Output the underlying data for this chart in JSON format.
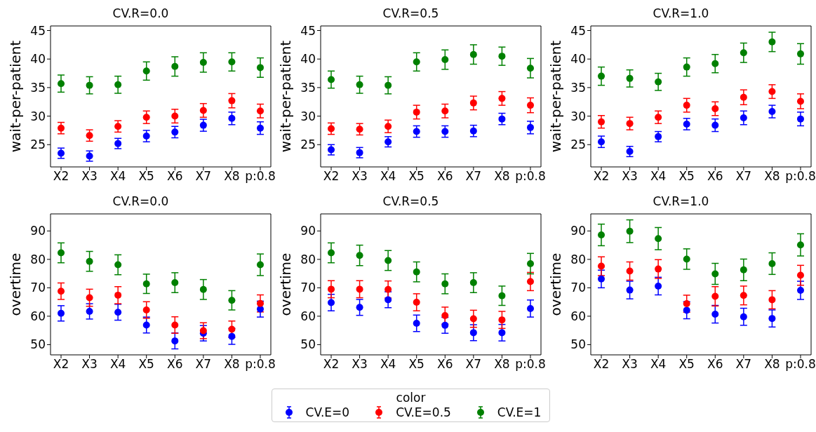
{
  "chart_data": [
    {
      "type": "scatter",
      "title": "CV.R=0.0",
      "ylabel": "wait-per-patient",
      "categories": [
        "X2",
        "X3",
        "X4",
        "X5",
        "X6",
        "X7",
        "X8",
        "p:0.8"
      ],
      "ylim": [
        21.1,
        45.8
      ],
      "yticks": [
        25,
        30,
        35,
        40,
        45
      ],
      "grid": false,
      "marker": "circle",
      "legend": "bottom",
      "legend_title": "color",
      "series": [
        {
          "name": "CV.E=0",
          "color": "#0000ff",
          "values": [
            23.5,
            23.0,
            25.2,
            26.5,
            27.2,
            28.4,
            29.6,
            27.9
          ],
          "errors": [
            0.9,
            0.9,
            0.9,
            1.0,
            1.0,
            1.05,
            1.1,
            1.1
          ]
        },
        {
          "name": "CV.E=0.5",
          "color": "#ff0000",
          "values": [
            27.9,
            26.6,
            28.2,
            29.8,
            30.0,
            31.0,
            32.7,
            30.9
          ],
          "errors": [
            1.0,
            1.0,
            1.0,
            1.1,
            1.2,
            1.2,
            1.25,
            1.2
          ]
        },
        {
          "name": "CV.E=1",
          "color": "#008000",
          "values": [
            35.7,
            35.4,
            35.5,
            37.9,
            38.7,
            39.4,
            39.5,
            38.5
          ],
          "errors": [
            1.5,
            1.5,
            1.5,
            1.6,
            1.7,
            1.7,
            1.6,
            1.7
          ]
        }
      ]
    },
    {
      "type": "scatter",
      "title": "CV.R=0.5",
      "ylabel": "wait-per-patient",
      "categories": [
        "X2",
        "X3",
        "X4",
        "X5",
        "X6",
        "X7",
        "X8",
        "p:0.8"
      ],
      "ylim": [
        21.1,
        45.8
      ],
      "yticks": [
        25,
        30,
        35,
        40,
        45
      ],
      "grid": false,
      "marker": "circle",
      "series": [
        {
          "color": "#0000ff",
          "values": [
            24.1,
            23.6,
            25.5,
            27.3,
            27.3,
            27.4,
            29.5,
            28.0
          ],
          "errors": [
            0.9,
            0.9,
            0.9,
            1.0,
            1.0,
            1.0,
            1.0,
            1.1
          ]
        },
        {
          "color": "#ff0000",
          "values": [
            27.8,
            27.7,
            28.2,
            30.7,
            30.9,
            32.3,
            33.1,
            31.9
          ],
          "errors": [
            1.0,
            1.0,
            1.1,
            1.2,
            1.2,
            1.2,
            1.2,
            1.3
          ]
        },
        {
          "color": "#008000",
          "values": [
            36.4,
            35.5,
            35.4,
            39.5,
            39.9,
            40.8,
            40.5,
            38.4
          ],
          "errors": [
            1.5,
            1.5,
            1.5,
            1.6,
            1.7,
            1.7,
            1.6,
            1.7
          ]
        }
      ]
    },
    {
      "type": "scatter",
      "title": "CV.R=1.0",
      "ylabel": "wait-per-patient",
      "categories": [
        "X2",
        "X3",
        "X4",
        "X5",
        "X6",
        "X7",
        "X8",
        "p:0.8"
      ],
      "ylim": [
        21.1,
        45.8
      ],
      "yticks": [
        25,
        30,
        35,
        40,
        45
      ],
      "grid": false,
      "marker": "circle",
      "series": [
        {
          "color": "#0000ff",
          "values": [
            25.5,
            23.8,
            26.4,
            28.6,
            28.4,
            29.7,
            30.8,
            29.5
          ],
          "errors": [
            1.0,
            0.9,
            0.9,
            1.0,
            1.1,
            1.2,
            1.1,
            1.2
          ]
        },
        {
          "color": "#ff0000",
          "values": [
            29.0,
            28.7,
            29.8,
            31.9,
            31.3,
            33.3,
            34.3,
            32.6
          ],
          "errors": [
            1.1,
            1.1,
            1.1,
            1.2,
            1.2,
            1.3,
            1.2,
            1.3
          ]
        },
        {
          "color": "#008000",
          "values": [
            37.0,
            36.6,
            36.0,
            38.6,
            39.2,
            41.1,
            43.0,
            40.9
          ],
          "errors": [
            1.6,
            1.5,
            1.5,
            1.6,
            1.6,
            1.7,
            1.7,
            1.8
          ]
        }
      ]
    },
    {
      "type": "scatter",
      "title": "CV.R=0.0",
      "ylabel": "overtime",
      "categories": [
        "X2",
        "X3",
        "X4",
        "X5",
        "X6",
        "X7",
        "X8",
        "p:0.8"
      ],
      "ylim": [
        46.4,
        96
      ],
      "yticks": [
        50,
        60,
        70,
        80,
        90
      ],
      "grid": false,
      "marker": "circle",
      "series": [
        {
          "color": "#0000ff",
          "values": [
            61.0,
            61.7,
            61.4,
            56.9,
            51.3,
            54.0,
            52.9,
            62.5
          ],
          "errors": [
            2.7,
            2.7,
            2.8,
            2.8,
            2.8,
            2.7,
            2.8,
            2.8
          ]
        },
        {
          "color": "#ff0000",
          "values": [
            68.8,
            66.5,
            67.4,
            62.2,
            56.9,
            54.9,
            55.4,
            64.5
          ],
          "errors": [
            2.9,
            3.0,
            3.0,
            2.9,
            2.9,
            2.8,
            2.9,
            3.0
          ]
        },
        {
          "color": "#008000",
          "values": [
            82.3,
            79.3,
            78.1,
            71.4,
            71.8,
            69.4,
            65.6,
            78.1
          ],
          "errors": [
            3.5,
            3.5,
            3.5,
            3.4,
            3.5,
            3.5,
            3.4,
            3.8
          ]
        }
      ]
    },
    {
      "type": "scatter",
      "title": "CV.R=0.5",
      "ylabel": "overtime",
      "categories": [
        "X2",
        "X3",
        "X4",
        "X5",
        "X6",
        "X7",
        "X8",
        "p:0.8"
      ],
      "ylim": [
        46.4,
        96
      ],
      "yticks": [
        50,
        60,
        70,
        80,
        90
      ],
      "grid": false,
      "marker": "circle",
      "series": [
        {
          "color": "#0000ff",
          "values": [
            64.8,
            63.1,
            65.8,
            57.5,
            56.8,
            54.2,
            54.2,
            62.7
          ],
          "errors": [
            2.9,
            2.8,
            2.8,
            2.9,
            2.8,
            2.8,
            2.9,
            3.0
          ]
        },
        {
          "color": "#ff0000",
          "values": [
            69.5,
            69.5,
            69.4,
            64.9,
            60.2,
            59.1,
            58.7,
            72.2
          ],
          "errors": [
            3.0,
            3.0,
            3.0,
            3.0,
            3.0,
            3.0,
            3.0,
            3.2
          ]
        },
        {
          "color": "#008000",
          "values": [
            82.3,
            81.4,
            79.6,
            75.6,
            71.4,
            71.8,
            67.2,
            78.5
          ],
          "errors": [
            3.5,
            3.6,
            3.5,
            3.5,
            3.5,
            3.5,
            3.4,
            3.6
          ]
        }
      ]
    },
    {
      "type": "scatter",
      "title": "CV.R=1.0",
      "ylabel": "overtime",
      "categories": [
        "X2",
        "X3",
        "X4",
        "X5",
        "X6",
        "X7",
        "X8",
        "p:0.8"
      ],
      "ylim": [
        46.4,
        96
      ],
      "yticks": [
        50,
        60,
        70,
        80,
        90
      ],
      "grid": false,
      "marker": "circle",
      "series": [
        {
          "color": "#0000ff",
          "values": [
            73.1,
            69.2,
            70.6,
            62.1,
            60.7,
            59.8,
            59.2,
            69.1
          ],
          "errors": [
            3.1,
            3.1,
            3.1,
            3.0,
            3.1,
            3.0,
            3.0,
            3.2
          ]
        },
        {
          "color": "#ff0000",
          "values": [
            77.6,
            75.9,
            76.6,
            64.4,
            67.0,
            67.3,
            65.8,
            74.4
          ],
          "errors": [
            3.3,
            3.2,
            3.3,
            3.0,
            3.4,
            3.3,
            3.2,
            3.5
          ]
        },
        {
          "color": "#008000",
          "values": [
            88.6,
            89.9,
            87.3,
            80.1,
            74.9,
            76.3,
            78.5,
            85.1
          ],
          "errors": [
            3.8,
            4.0,
            3.9,
            3.6,
            3.7,
            3.8,
            3.8,
            3.9
          ]
        }
      ]
    }
  ]
}
